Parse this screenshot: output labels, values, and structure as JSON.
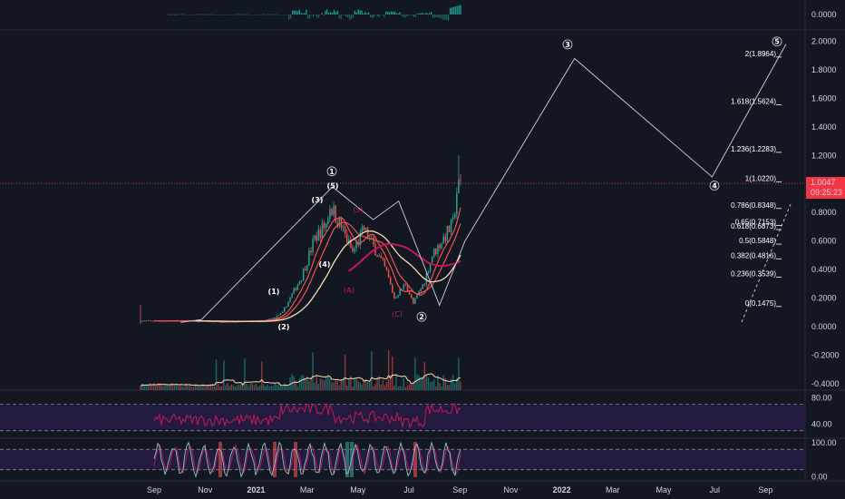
{
  "chart_data": {
    "type": "line",
    "title": "",
    "last_price": {
      "value": 1.0047,
      "label": "1.0047",
      "countdown": "09:25:23",
      "color": "#f23645"
    },
    "x_axis": {
      "ticks": [
        "Sep",
        "Nov",
        "2021",
        "Mar",
        "May",
        "Jul",
        "Sep",
        "Nov",
        "2022",
        "Mar",
        "May",
        "Jul",
        "Sep"
      ],
      "bold_ticks": [
        "2021",
        "2022"
      ]
    },
    "main_pane": {
      "y_range": [
        -0.42,
        2.05
      ],
      "y_ticks": [
        "2.0000",
        "1.8000",
        "1.6000",
        "1.4000",
        "1.2000",
        "1.0000",
        "0.8000",
        "0.6000",
        "0.4000",
        "0.2000",
        "0.0000",
        "-0.2000",
        "-0.4000"
      ],
      "y_tick_values": [
        2.0,
        1.8,
        1.6,
        1.4,
        1.2,
        1.0,
        0.8,
        0.6,
        0.4,
        0.2,
        0.0,
        -0.2,
        -0.4
      ]
    },
    "fib_levels": [
      {
        "label": "2(1.8964)",
        "value": 1.8964
      },
      {
        "label": "1.618(1.5624)",
        "value": 1.5624
      },
      {
        "label": "1.236(1.2283)",
        "value": 1.2283
      },
      {
        "label": "1(1.0220)",
        "value": 1.022
      },
      {
        "label": "0.786(0.8348)",
        "value": 0.8348
      },
      {
        "label": "0.65(0.7153)",
        "value": 0.7153
      },
      {
        "label": "0.618(0.6873)",
        "value": 0.6873
      },
      {
        "label": "0.5(0.5848)",
        "value": 0.5848
      },
      {
        "label": "0.382(0.4816)",
        "value": 0.4816
      },
      {
        "label": "0.236(0.3539)",
        "value": 0.3539
      },
      {
        "label": "0(0.1475)",
        "value": 0.1475
      }
    ],
    "wave_labels": [
      {
        "text": "(1)",
        "style": "minor"
      },
      {
        "text": "(2)",
        "style": "minor"
      },
      {
        "text": "(3)",
        "style": "minor"
      },
      {
        "text": "(4)",
        "style": "minor"
      },
      {
        "text": "(5)",
        "style": "minor"
      },
      {
        "text": "(5)",
        "style": "sub"
      },
      {
        "text": "(A)",
        "style": "sub"
      },
      {
        "text": "(C)",
        "style": "sub"
      },
      {
        "text": "①",
        "style": "major"
      },
      {
        "text": "②",
        "style": "major"
      },
      {
        "text": "③",
        "style": "major"
      },
      {
        "text": "④",
        "style": "major"
      },
      {
        "text": "⑤",
        "style": "major"
      }
    ],
    "projection_path": [
      {
        "t": 0.52,
        "y": 0.03
      },
      {
        "t": 0.93,
        "y": 0.05
      },
      {
        "t": 3.5,
        "y": 0.98
      },
      {
        "t": 4.3,
        "y": 0.75
      },
      {
        "t": 4.8,
        "y": 0.88
      },
      {
        "t": 5.6,
        "y": 0.15
      },
      {
        "t": 6.1,
        "y": 0.6
      },
      {
        "t": 8.25,
        "y": 1.88
      },
      {
        "t": 10.95,
        "y": 1.05
      },
      {
        "t": 12.4,
        "y": 1.98
      }
    ],
    "top_pane": {
      "y_ticks": [
        "0.0000"
      ],
      "y_tick_values": [
        0.0
      ]
    },
    "rsi_pane": {
      "y_ticks": [
        "80.00",
        "40.00"
      ],
      "y_tick_values": [
        80,
        40
      ],
      "bands": [
        70,
        30
      ],
      "y_range": [
        20,
        90
      ]
    },
    "stoch_pane": {
      "y_ticks": [
        "100.00",
        "0.00"
      ],
      "y_tick_values": [
        100,
        0
      ],
      "bands": [
        80,
        20
      ],
      "y_range": [
        -10,
        110
      ]
    },
    "colors": {
      "background": "#131722",
      "up": "#26a69a",
      "down": "#ef5350",
      "ma_fast": "#ef5350",
      "ma_mid": "#f5deb3",
      "ma_slow": "#c2185b",
      "rsi": "#c2185b",
      "band_fill": "#2a1d4a",
      "stoch_k": "#80cbc4",
      "stoch_d": "#c2185b"
    }
  }
}
